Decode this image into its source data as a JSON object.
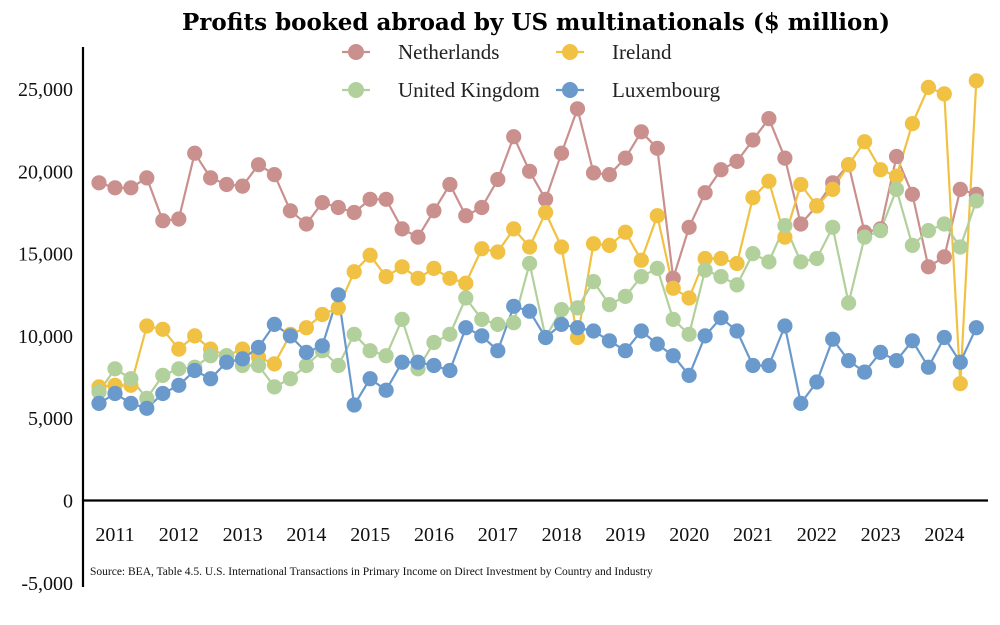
{
  "chart_data": {
    "type": "line",
    "title": "Profits booked abroad by US multinationals ($ million)",
    "xlabel": "",
    "ylabel": "",
    "ylim": [
      -5000,
      27000
    ],
    "yticks": [
      -5000,
      0,
      5000,
      10000,
      15000,
      20000,
      25000
    ],
    "ytick_labels": [
      "-5,000",
      "0",
      "5,000",
      "10,000",
      "15,000",
      "20,000",
      "25,000"
    ],
    "x_start_year": 2011,
    "points_per_year": 4,
    "xtick_labels": [
      "2011",
      "2012",
      "2013",
      "2014",
      "2015",
      "2016",
      "2017",
      "2018",
      "2019",
      "2020",
      "2021",
      "2022",
      "2023",
      "2024"
    ],
    "grid": false,
    "legend_position": "top",
    "source": "Source: BEA, Table 4.5. U.S. International Transactions in Primary Income on Direct Investment by Country and Industry",
    "series": [
      {
        "name": "Netherlands",
        "color": "#c9908d",
        "values": [
          19300,
          19000,
          19000,
          19600,
          17000,
          17100,
          21100,
          19600,
          19200,
          19100,
          20400,
          19800,
          17600,
          16800,
          18100,
          17800,
          17500,
          18300,
          18300,
          16500,
          16000,
          17600,
          19200,
          17300,
          17800,
          19500,
          22100,
          20000,
          18300,
          21100,
          23800,
          19900,
          19800,
          20800,
          22400,
          21400,
          13500,
          16600,
          18700,
          20100,
          20600,
          21900,
          23200,
          20800,
          16800,
          17900,
          19300,
          20400,
          16300,
          16500,
          20900,
          18600,
          14200,
          14800,
          18900,
          18600
        ]
      },
      {
        "name": "Ireland",
        "color": "#f0c143",
        "values": [
          6900,
          7000,
          7000,
          10600,
          10400,
          9200,
          10000,
          9200,
          8800,
          9200,
          8700,
          8300,
          10100,
          10500,
          11300,
          11700,
          13900,
          14900,
          13600,
          14200,
          13500,
          14100,
          13500,
          13200,
          15300,
          15100,
          16500,
          15400,
          17500,
          15400,
          9900,
          15600,
          15500,
          16300,
          14600,
          17300,
          12900,
          12300,
          14700,
          14700,
          14400,
          18400,
          19400,
          16000,
          19200,
          17900,
          18900,
          20400,
          21800,
          20100,
          19700,
          22900,
          25100,
          24700,
          7100,
          25500
        ]
      },
      {
        "name": "United Kingdom",
        "color": "#b1d09b",
        "values": [
          6600,
          8000,
          7400,
          6200,
          7600,
          8000,
          8100,
          8800,
          8800,
          8200,
          8200,
          6900,
          7400,
          8200,
          9100,
          8200,
          10100,
          9100,
          8800,
          11000,
          8000,
          9600,
          10100,
          12300,
          11000,
          10700,
          10800,
          14400,
          9900,
          11600,
          11700,
          13300,
          11900,
          12400,
          13600,
          14100,
          11000,
          10100,
          14000,
          13600,
          13100,
          15000,
          14500,
          16700,
          14500,
          14700,
          16600,
          12000,
          16000,
          16400,
          18900,
          15500,
          16400,
          16800,
          15400,
          18200
        ]
      },
      {
        "name": "Luxembourg",
        "color": "#6a99cc",
        "values": [
          5900,
          6500,
          5900,
          5600,
          6500,
          7000,
          7900,
          7400,
          8400,
          8600,
          9300,
          10700,
          10000,
          9000,
          9400,
          12500,
          5800,
          7400,
          6700,
          8400,
          8400,
          8200,
          7900,
          10500,
          10000,
          9100,
          11800,
          11500,
          9900,
          10700,
          10500,
          10300,
          9700,
          9100,
          10300,
          9500,
          8800,
          7600,
          10000,
          11100,
          10300,
          8200,
          8200,
          10600,
          5900,
          7200,
          9800,
          8500,
          7800,
          9000,
          8500,
          9700,
          8100,
          9900,
          8400,
          10500
        ]
      }
    ]
  }
}
